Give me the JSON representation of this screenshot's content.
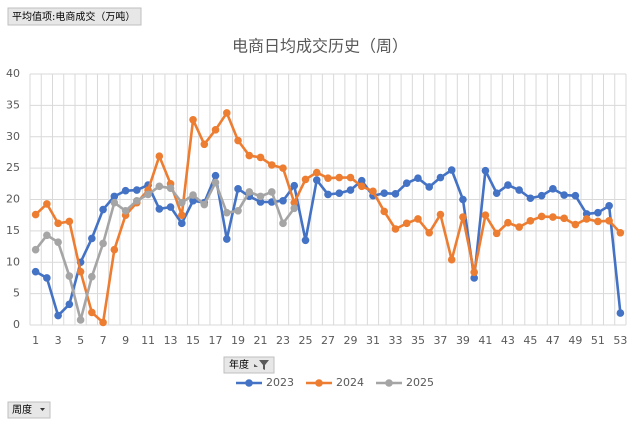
{
  "buttons": {
    "values_field": "平均值项:电商成交（万吨）",
    "legend_field": "年度",
    "axis_field": "周度"
  },
  "chart_data": {
    "type": "line",
    "title": "电商日均成交历史（周）",
    "categories": [
      1,
      null,
      3,
      null,
      5,
      null,
      7,
      null,
      9,
      null,
      11,
      null,
      13,
      null,
      15,
      null,
      17,
      null,
      19,
      null,
      21,
      null,
      23,
      null,
      25,
      null,
      27,
      null,
      29,
      null,
      31,
      null,
      33,
      null,
      35,
      null,
      37,
      null,
      39,
      null,
      41,
      null,
      43,
      null,
      45,
      null,
      47,
      null,
      49,
      null,
      51,
      null,
      53
    ],
    "ylim": [
      0,
      40
    ],
    "yticks": [
      0,
      5,
      10,
      15,
      20,
      25,
      30,
      35,
      40
    ],
    "grid": true,
    "series": [
      {
        "name": "2023",
        "color": "#4472c4",
        "values": [
          8.5,
          7.5,
          1.5,
          3.3,
          10,
          13.8,
          18.4,
          20.5,
          21.4,
          21.5,
          22.3,
          18.5,
          18.8,
          16.2,
          19.8,
          19.5,
          23.8,
          13.7,
          21.7,
          20.5,
          19.6,
          19.6,
          19.8,
          22.2,
          13.5,
          23.1,
          20.8,
          21,
          21.5,
          23,
          20.6,
          21,
          20.9,
          22.6,
          23.4,
          22,
          23.5,
          24.7,
          20,
          7.5,
          24.6,
          21,
          22.3,
          21.5,
          20.2,
          20.6,
          21.7,
          20.7,
          20.6,
          17.7,
          17.9,
          19,
          1.9
        ]
      },
      {
        "name": "2024",
        "color": "#ed7d31",
        "values": [
          17.6,
          19.3,
          16.2,
          16.5,
          8.5,
          2,
          0.4,
          12,
          17.5,
          19.5,
          21.5,
          26.9,
          22.5,
          17.5,
          32.7,
          28.8,
          31.1,
          33.8,
          29.4,
          27,
          26.7,
          25.5,
          25,
          19.5,
          23.2,
          24.3,
          23.4,
          23.5,
          23.5,
          22.1,
          21.3,
          18.1,
          15.3,
          16.2,
          16.9,
          14.7,
          17.6,
          10.4,
          17.2,
          8.4,
          17.5,
          14.6,
          16.3,
          15.6,
          16.6,
          17.3,
          17.2,
          17,
          16,
          16.9,
          16.5,
          16.6,
          14.7
        ]
      },
      {
        "name": "2025",
        "color": "#a5a5a5",
        "values": [
          12,
          14.3,
          13.2,
          7.8,
          0.8,
          7.7,
          13,
          19.5,
          18.2,
          19.8,
          20.8,
          22.1,
          21.8,
          19.5,
          20.7,
          19.2,
          22.7,
          17.9,
          18.2,
          21.2,
          20.5,
          21.2,
          16.2,
          18.6,
          null,
          null,
          null,
          null,
          null,
          null,
          null,
          null,
          null,
          null,
          null,
          null,
          null,
          null,
          null,
          null,
          null,
          null,
          null,
          null,
          null,
          null,
          null,
          null,
          null,
          null,
          null,
          null,
          null
        ]
      }
    ]
  }
}
